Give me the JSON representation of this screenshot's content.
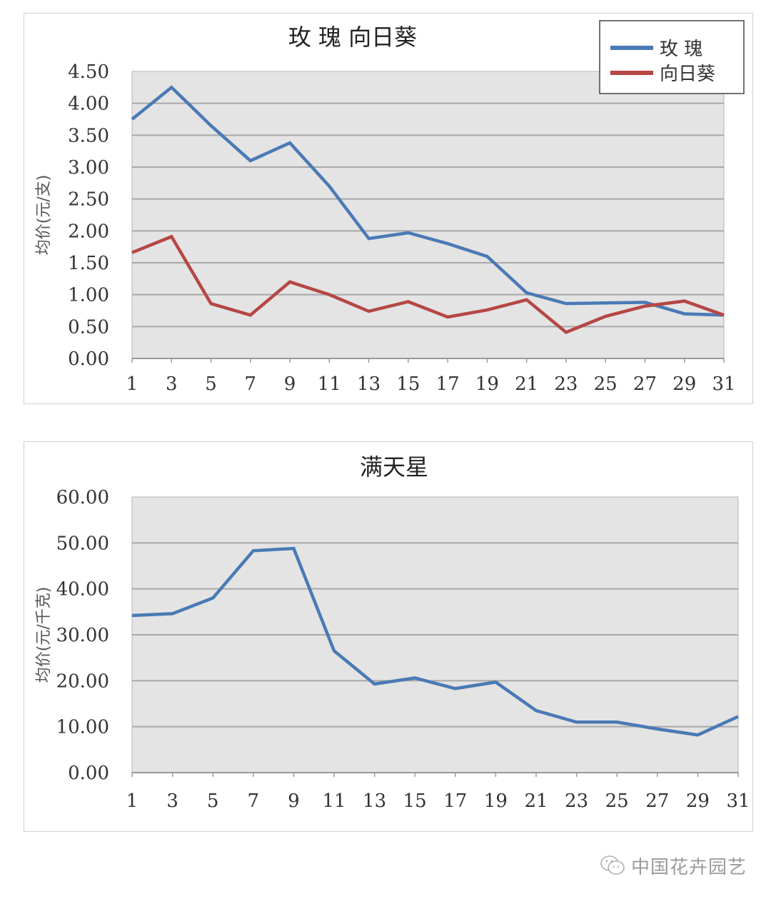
{
  "chart_data": [
    {
      "type": "line",
      "title": "玫 瑰   向日葵",
      "xlabel": "",
      "ylabel": "均价(元/支)",
      "categories": [
        1,
        3,
        5,
        7,
        9,
        11,
        13,
        15,
        17,
        19,
        21,
        23,
        25,
        27,
        29,
        31
      ],
      "x_tick_labels": [
        "1",
        "3",
        "5",
        "7",
        "9",
        "11",
        "13",
        "15",
        "17",
        "19",
        "21",
        "23",
        "25",
        "27",
        "29",
        "31"
      ],
      "y_tick_labels": [
        "0.00",
        "0.50",
        "1.00",
        "1.50",
        "2.00",
        "2.50",
        "3.00",
        "3.50",
        "4.00",
        "4.50"
      ],
      "ylim": [
        0,
        4.5
      ],
      "grid": true,
      "legend_position": "top-right",
      "series": [
        {
          "name": "玫 瑰",
          "color": "#4a7ab5",
          "values": [
            3.75,
            4.25,
            3.65,
            3.1,
            3.38,
            2.7,
            1.88,
            1.97,
            1.8,
            1.6,
            1.03,
            0.86,
            0.87,
            0.88,
            0.7,
            0.68
          ]
        },
        {
          "name": "向日葵",
          "color": "#b54744",
          "values": [
            1.66,
            1.91,
            0.86,
            0.68,
            1.2,
            1.0,
            0.74,
            0.89,
            0.65,
            0.76,
            0.92,
            0.41,
            0.66,
            0.82,
            0.9,
            0.68
          ]
        }
      ]
    },
    {
      "type": "line",
      "title": "满天星",
      "xlabel": "",
      "ylabel": "均价(元/千克)",
      "categories": [
        1,
        3,
        5,
        7,
        9,
        11,
        13,
        15,
        17,
        19,
        21,
        23,
        25,
        27,
        29,
        31
      ],
      "x_tick_labels": [
        "1",
        "3",
        "5",
        "7",
        "9",
        "11",
        "13",
        "15",
        "17",
        "19",
        "21",
        "23",
        "25",
        "27",
        "29",
        "31"
      ],
      "y_tick_labels": [
        "0.00",
        "10.00",
        "20.00",
        "30.00",
        "40.00",
        "50.00",
        "60.00"
      ],
      "ylim": [
        0,
        60
      ],
      "grid": true,
      "legend_position": "none",
      "series": [
        {
          "name": "满天星",
          "color": "#4a7ab5",
          "values": [
            34.2,
            34.6,
            38.0,
            48.3,
            48.8,
            26.5,
            19.3,
            20.6,
            18.3,
            19.7,
            13.5,
            11.0,
            11.0,
            9.5,
            8.2,
            12.2
          ]
        }
      ]
    }
  ],
  "watermark": {
    "text": "中国花卉园艺",
    "icon": "wechat-icon"
  },
  "style": {
    "plot_bg": "#e4e4e4",
    "grid_color": "#a8a8a8",
    "text_color": "#333333"
  }
}
